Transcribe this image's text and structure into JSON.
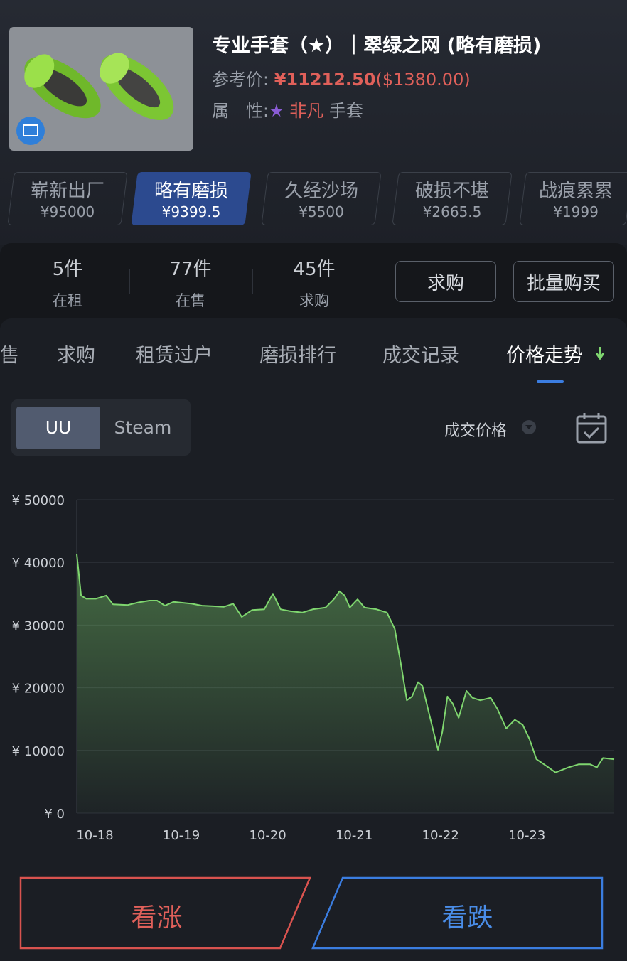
{
  "item": {
    "title": "专业手套（★）｜翠绿之网 (略有磨损)",
    "ref_label": "参考价:",
    "price": "¥11212.50",
    "usd": "($1380.00)",
    "attr_label": "属　性:",
    "star": "★",
    "rarity": "非凡",
    "kind": "手套"
  },
  "wear_tabs": [
    {
      "name": "崭新出厂",
      "price": "¥95000"
    },
    {
      "name": "略有磨损",
      "price": "¥9399.5"
    },
    {
      "name": "久经沙场",
      "price": "¥5500"
    },
    {
      "name": "破损不堪",
      "price": "¥2665.5"
    },
    {
      "name": "战痕累累",
      "price": "¥1999"
    }
  ],
  "stats": [
    {
      "value": "5件",
      "label": "在租"
    },
    {
      "value": "77件",
      "label": "在售"
    },
    {
      "value": "45件",
      "label": "求购"
    }
  ],
  "actions": [
    "求购",
    "批量购买"
  ],
  "tabs": [
    "售",
    "求购",
    "租赁过户",
    "磨损排行",
    "成交记录",
    "价格走势"
  ],
  "sources": [
    "UU",
    "Steam"
  ],
  "metric": "成交价格",
  "chart_data": {
    "type": "line",
    "color": "#7fd66f",
    "grid": true,
    "x": [
      -0.21,
      -0.16,
      -0.1,
      0.01,
      0.13,
      0.21,
      0.38,
      0.5,
      0.63,
      0.72,
      0.81,
      0.91,
      1.12,
      1.24,
      1.37,
      1.49,
      1.6,
      1.7,
      1.82,
      1.96,
      2.06,
      2.15,
      2.27,
      2.4,
      2.52,
      2.67,
      2.77,
      2.83,
      2.89,
      2.95,
      3.04,
      3.12,
      3.26,
      3.38,
      3.47,
      3.55,
      3.61,
      3.67,
      3.74,
      3.79,
      3.86,
      3.97,
      4.02,
      4.08,
      4.14,
      4.21,
      4.3,
      4.37,
      4.46,
      4.58,
      4.66,
      4.76,
      4.86,
      4.95,
      5.03,
      5.11,
      5.23,
      5.33,
      5.48,
      5.6,
      5.73,
      5.81,
      5.88,
      6.01
    ],
    "values": [
      41300,
      34700,
      34200,
      34200,
      34700,
      33300,
      33200,
      33600,
      33900,
      33900,
      33100,
      33700,
      33400,
      33100,
      33000,
      32900,
      33400,
      31300,
      32400,
      32500,
      35000,
      32500,
      32200,
      32000,
      32500,
      32800,
      34200,
      35400,
      34700,
      32800,
      34100,
      32800,
      32500,
      32000,
      29400,
      23100,
      18000,
      18600,
      20900,
      20300,
      16300,
      10100,
      12900,
      18600,
      17500,
      15200,
      19500,
      18400,
      18000,
      18400,
      16600,
      13500,
      14900,
      14100,
      11800,
      8600,
      7500,
      6500,
      7300,
      7800,
      7800,
      7300,
      8800,
      8600
    ],
    "xlim": [
      -0.21,
      6.01
    ],
    "xticks": [
      {
        "value": 0,
        "label": "10-18"
      },
      {
        "value": 1,
        "label": "10-19"
      },
      {
        "value": 2,
        "label": "10-20"
      },
      {
        "value": 3,
        "label": "10-21"
      },
      {
        "value": 4,
        "label": "10-22"
      },
      {
        "value": 5,
        "label": "10-23"
      }
    ],
    "ylim": [
      0,
      50000
    ],
    "yticks": [
      {
        "value": 0,
        "label": "¥ 0"
      },
      {
        "value": 10000,
        "label": "¥ 10000"
      },
      {
        "value": 20000,
        "label": "¥ 20000"
      },
      {
        "value": 30000,
        "label": "¥ 30000"
      },
      {
        "value": 40000,
        "label": "¥ 40000"
      },
      {
        "value": 50000,
        "label": "¥ 50000"
      }
    ]
  },
  "trade_buttons": [
    "看涨",
    "看跌"
  ]
}
